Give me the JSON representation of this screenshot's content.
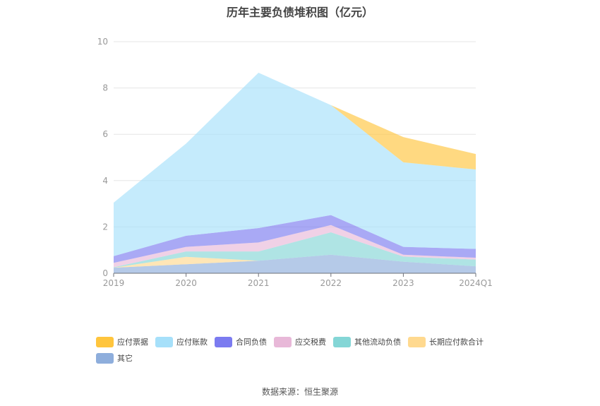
{
  "chart_data": {
    "type": "area",
    "stacked": true,
    "title": "历年主要负债堆积图（亿元）",
    "categories": [
      "2019",
      "2020",
      "2021",
      "2022",
      "2023",
      "2024Q1"
    ],
    "ylim": [
      0,
      10
    ],
    "yticks": [
      0,
      2,
      4,
      6,
      8,
      10
    ],
    "grid": true,
    "legend_position": "bottom",
    "series": [
      {
        "name": "其它",
        "color": "#8eaedc",
        "values": [
          0.24,
          0.39,
          0.54,
          0.8,
          0.5,
          0.3
        ]
      },
      {
        "name": "长期应付款合计",
        "color": "#ffd98f",
        "values": [
          0,
          0.32,
          0,
          0,
          0,
          0
        ]
      },
      {
        "name": "其他流动负债",
        "color": "#84d6d6",
        "values": [
          0.02,
          0.23,
          0.4,
          0.97,
          0.22,
          0.29
        ]
      },
      {
        "name": "应交税费",
        "color": "#e8b8d8",
        "values": [
          0.19,
          0.2,
          0.39,
          0.31,
          0.08,
          0.08
        ]
      },
      {
        "name": "合同负债",
        "color": "#7b7bf0",
        "values": [
          0.29,
          0.48,
          0.62,
          0.43,
          0.34,
          0.38
        ]
      },
      {
        "name": "应付账款",
        "color": "#a6e0fa",
        "values": [
          2.31,
          3.98,
          6.71,
          4.75,
          3.65,
          3.43
        ]
      },
      {
        "name": "应付票据",
        "color": "#ffc53d",
        "values": [
          0,
          0,
          0,
          0,
          1.09,
          0.67
        ]
      }
    ],
    "legend_order": [
      "应付票据",
      "应付账款",
      "合同负债",
      "应交税费",
      "其他流动负债",
      "长期应付款合计",
      "其它"
    ]
  },
  "source": "数据来源：恒生聚源"
}
